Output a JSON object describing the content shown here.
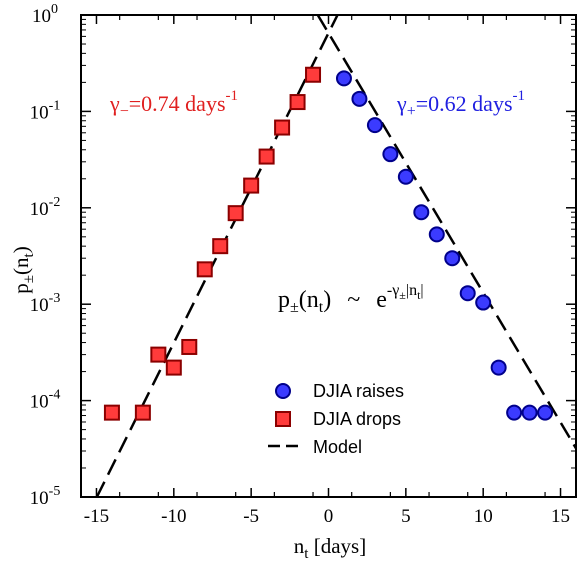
{
  "chart_data": {
    "type": "scatter",
    "xlabel_main": "n",
    "xlabel_sub": "t",
    "xlabel_unit": " [days]",
    "ylabel_main": "p",
    "ylabel_pm": "±",
    "ylabel_open": "(n",
    "ylabel_sub": "t",
    "ylabel_close": ")",
    "xlim": [
      -16,
      16
    ],
    "ylim_log10": [
      -5,
      0
    ],
    "yscale": "log",
    "x_ticks": [
      -15,
      -10,
      -5,
      0,
      5,
      10,
      15
    ],
    "y_ticks": [
      {
        "mantissa": "10",
        "exponent": "0"
      },
      {
        "mantissa": "10",
        "exponent": "-1"
      },
      {
        "mantissa": "10",
        "exponent": "-2"
      },
      {
        "mantissa": "10",
        "exponent": "-3"
      },
      {
        "mantissa": "10",
        "exponent": "-4"
      },
      {
        "mantissa": "10",
        "exponent": "-5"
      }
    ],
    "grid": false,
    "legend_position": "bottom-right",
    "series": [
      {
        "name": "DJIA raises",
        "marker": "circle",
        "color": "#2020e0",
        "x": [
          1,
          2,
          3,
          4,
          5,
          6,
          7,
          8,
          9,
          10,
          11,
          12,
          13,
          14
        ],
        "y": [
          0.22,
          0.135,
          0.072,
          0.036,
          0.021,
          0.009,
          0.0053,
          0.003,
          0.0013,
          0.00104,
          0.00022,
          7.5e-05,
          7.5e-05,
          7.5e-05
        ]
      },
      {
        "name": "DJIA drops",
        "marker": "square",
        "color": "#e02020",
        "x": [
          -1,
          -2,
          -3,
          -4,
          -5,
          -6,
          -7,
          -8,
          -9,
          -10,
          -11,
          -12,
          -14
        ],
        "y": [
          0.24,
          0.125,
          0.068,
          0.034,
          0.017,
          0.0088,
          0.004,
          0.0023,
          0.00036,
          0.00022,
          0.0003,
          7.5e-05,
          7.5e-05
        ]
      },
      {
        "name": "Model",
        "line": "dashed",
        "color": "#000000",
        "peak": 0.65,
        "rate_plus": 0.62,
        "rate_minus": 0.74
      }
    ],
    "annotations": {
      "gamma_minus": {
        "symbol": "γ",
        "sub": "−",
        "text": "=0.74 days",
        "exp": "-1",
        "color": "#e02020"
      },
      "gamma_plus": {
        "symbol": "γ",
        "sub": "+",
        "text": "=0.62 days",
        "exp": "-1",
        "color": "#2020e0"
      },
      "formula": {
        "p": "p",
        "pm": "±",
        "open": "(n",
        "sub_t": "t",
        "close": ")",
        "tilde": "~",
        "e": "e",
        "exp_main": "-γ",
        "exp_pm": "±",
        "exp_abs": "|n",
        "exp_t": "t",
        "exp_end": "|"
      }
    }
  }
}
